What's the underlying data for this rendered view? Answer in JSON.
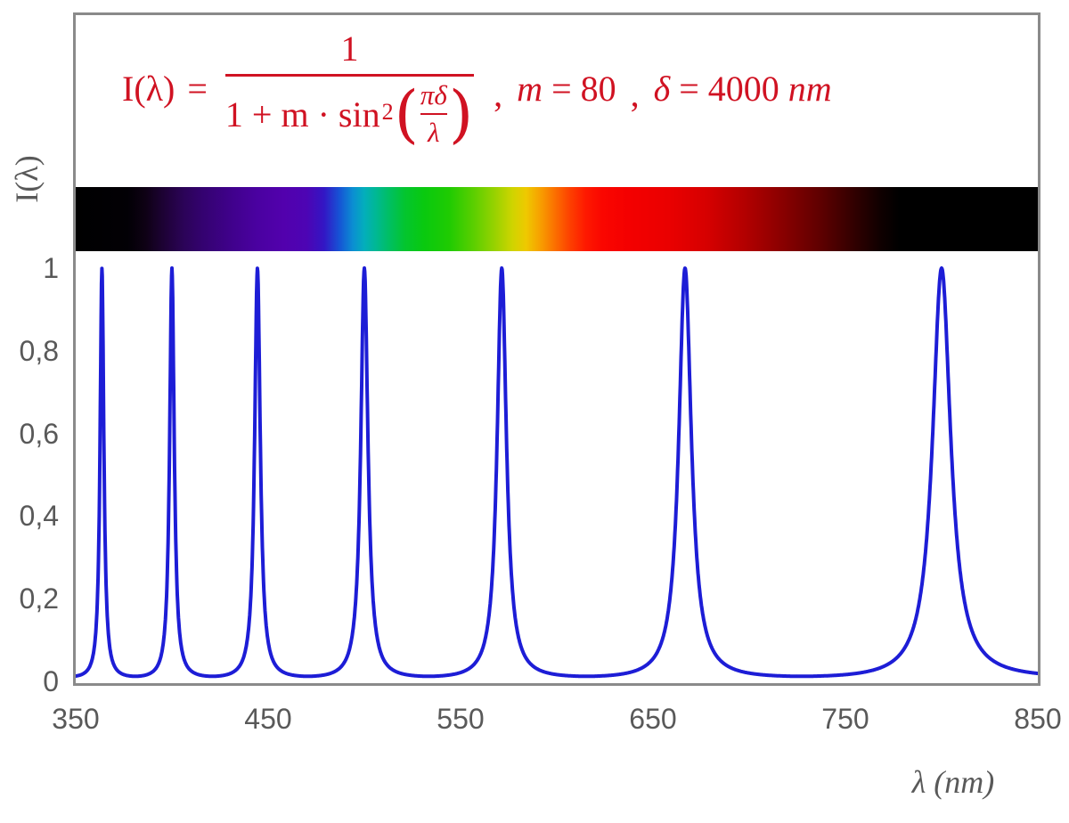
{
  "formula": {
    "lhs": "I(λ)",
    "eq": "=",
    "numerator": "1",
    "denom_pre": "1 + m · sin",
    "denom_exp": "2",
    "lparen": "(",
    "rparen": ")",
    "inner_num": "πδ",
    "inner_den": "λ",
    "comma": ",",
    "m_name": "m",
    "m_rest": "= 80",
    "delta_name": "δ",
    "delta_rest": "= 4000",
    "delta_unit": "nm",
    "color": "#d01222"
  },
  "axes": {
    "y_title": "I(λ)",
    "x_title": "λ  (nm)",
    "text_color": "#595959",
    "y_ticks": [
      {
        "label": "1",
        "value": 1.0
      },
      {
        "label": "0,8",
        "value": 0.8
      },
      {
        "label": "0,6",
        "value": 0.6
      },
      {
        "label": "0,4",
        "value": 0.4
      },
      {
        "label": "0,2",
        "value": 0.2
      },
      {
        "label": "0",
        "value": 0.0
      }
    ],
    "x_ticks": [
      {
        "label": "350",
        "value": 350
      },
      {
        "label": "450",
        "value": 450
      },
      {
        "label": "550",
        "value": 550
      },
      {
        "label": "650",
        "value": 650
      },
      {
        "label": "750",
        "value": 750
      },
      {
        "label": "850",
        "value": 850
      }
    ]
  },
  "frame": {
    "border_color": "#8a8a8a"
  },
  "chart_data": {
    "type": "line",
    "function": "I(lambda) = 1 / (1 + m * sin^2(pi * delta / lambda))",
    "params": {
      "m": 80,
      "delta_nm": 4000
    },
    "x_range_nm": [
      350,
      850
    ],
    "y_range": [
      0,
      1
    ],
    "peak_wavelengths_nm": [
      363.6,
      400.0,
      444.4,
      500.0,
      571.4,
      666.7,
      800.0
    ],
    "peak_value": 1.0,
    "valley_value": 0.0123,
    "line_color": "#1d1dd6",
    "line_width": 4,
    "grid": false,
    "legend": false
  },
  "spectrum_bar": {
    "stops": [
      {
        "nm": 350,
        "color": "#000000"
      },
      {
        "nm": 377,
        "color": "#020005"
      },
      {
        "nm": 386,
        "color": "#0e0114"
      },
      {
        "nm": 396,
        "color": "#1e0236"
      },
      {
        "nm": 406,
        "color": "#2b0357"
      },
      {
        "nm": 416,
        "color": "#340270"
      },
      {
        "nm": 430,
        "color": "#3f018a"
      },
      {
        "nm": 444,
        "color": "#4a01a0"
      },
      {
        "nm": 458,
        "color": "#5201ad"
      },
      {
        "nm": 470,
        "color": "#4d04b4"
      },
      {
        "nm": 479,
        "color": "#3316c4"
      },
      {
        "nm": 487,
        "color": "#1653d5"
      },
      {
        "nm": 494,
        "color": "#0b8ed2"
      },
      {
        "nm": 500,
        "color": "#03aebb"
      },
      {
        "nm": 506,
        "color": "#00b894"
      },
      {
        "nm": 513,
        "color": "#00bf62"
      },
      {
        "nm": 521,
        "color": "#03c52f"
      },
      {
        "nm": 531,
        "color": "#09c90f"
      },
      {
        "nm": 544,
        "color": "#1fcb02"
      },
      {
        "nm": 557,
        "color": "#5ccf00"
      },
      {
        "nm": 567,
        "color": "#93d200"
      },
      {
        "nm": 577,
        "color": "#cfd400"
      },
      {
        "nm": 584,
        "color": "#eec900"
      },
      {
        "nm": 591,
        "color": "#f7a200"
      },
      {
        "nm": 599,
        "color": "#fb7000"
      },
      {
        "nm": 607,
        "color": "#fd3f00"
      },
      {
        "nm": 615,
        "color": "#fe1900"
      },
      {
        "nm": 624,
        "color": "#fa0600"
      },
      {
        "nm": 637,
        "color": "#f40000"
      },
      {
        "nm": 658,
        "color": "#ea0000"
      },
      {
        "nm": 678,
        "color": "#d60000"
      },
      {
        "nm": 698,
        "color": "#b20000"
      },
      {
        "nm": 718,
        "color": "#880000"
      },
      {
        "nm": 738,
        "color": "#5c0000"
      },
      {
        "nm": 755,
        "color": "#300000"
      },
      {
        "nm": 768,
        "color": "#100000"
      },
      {
        "nm": 778,
        "color": "#000000"
      },
      {
        "nm": 850,
        "color": "#000000"
      }
    ]
  }
}
